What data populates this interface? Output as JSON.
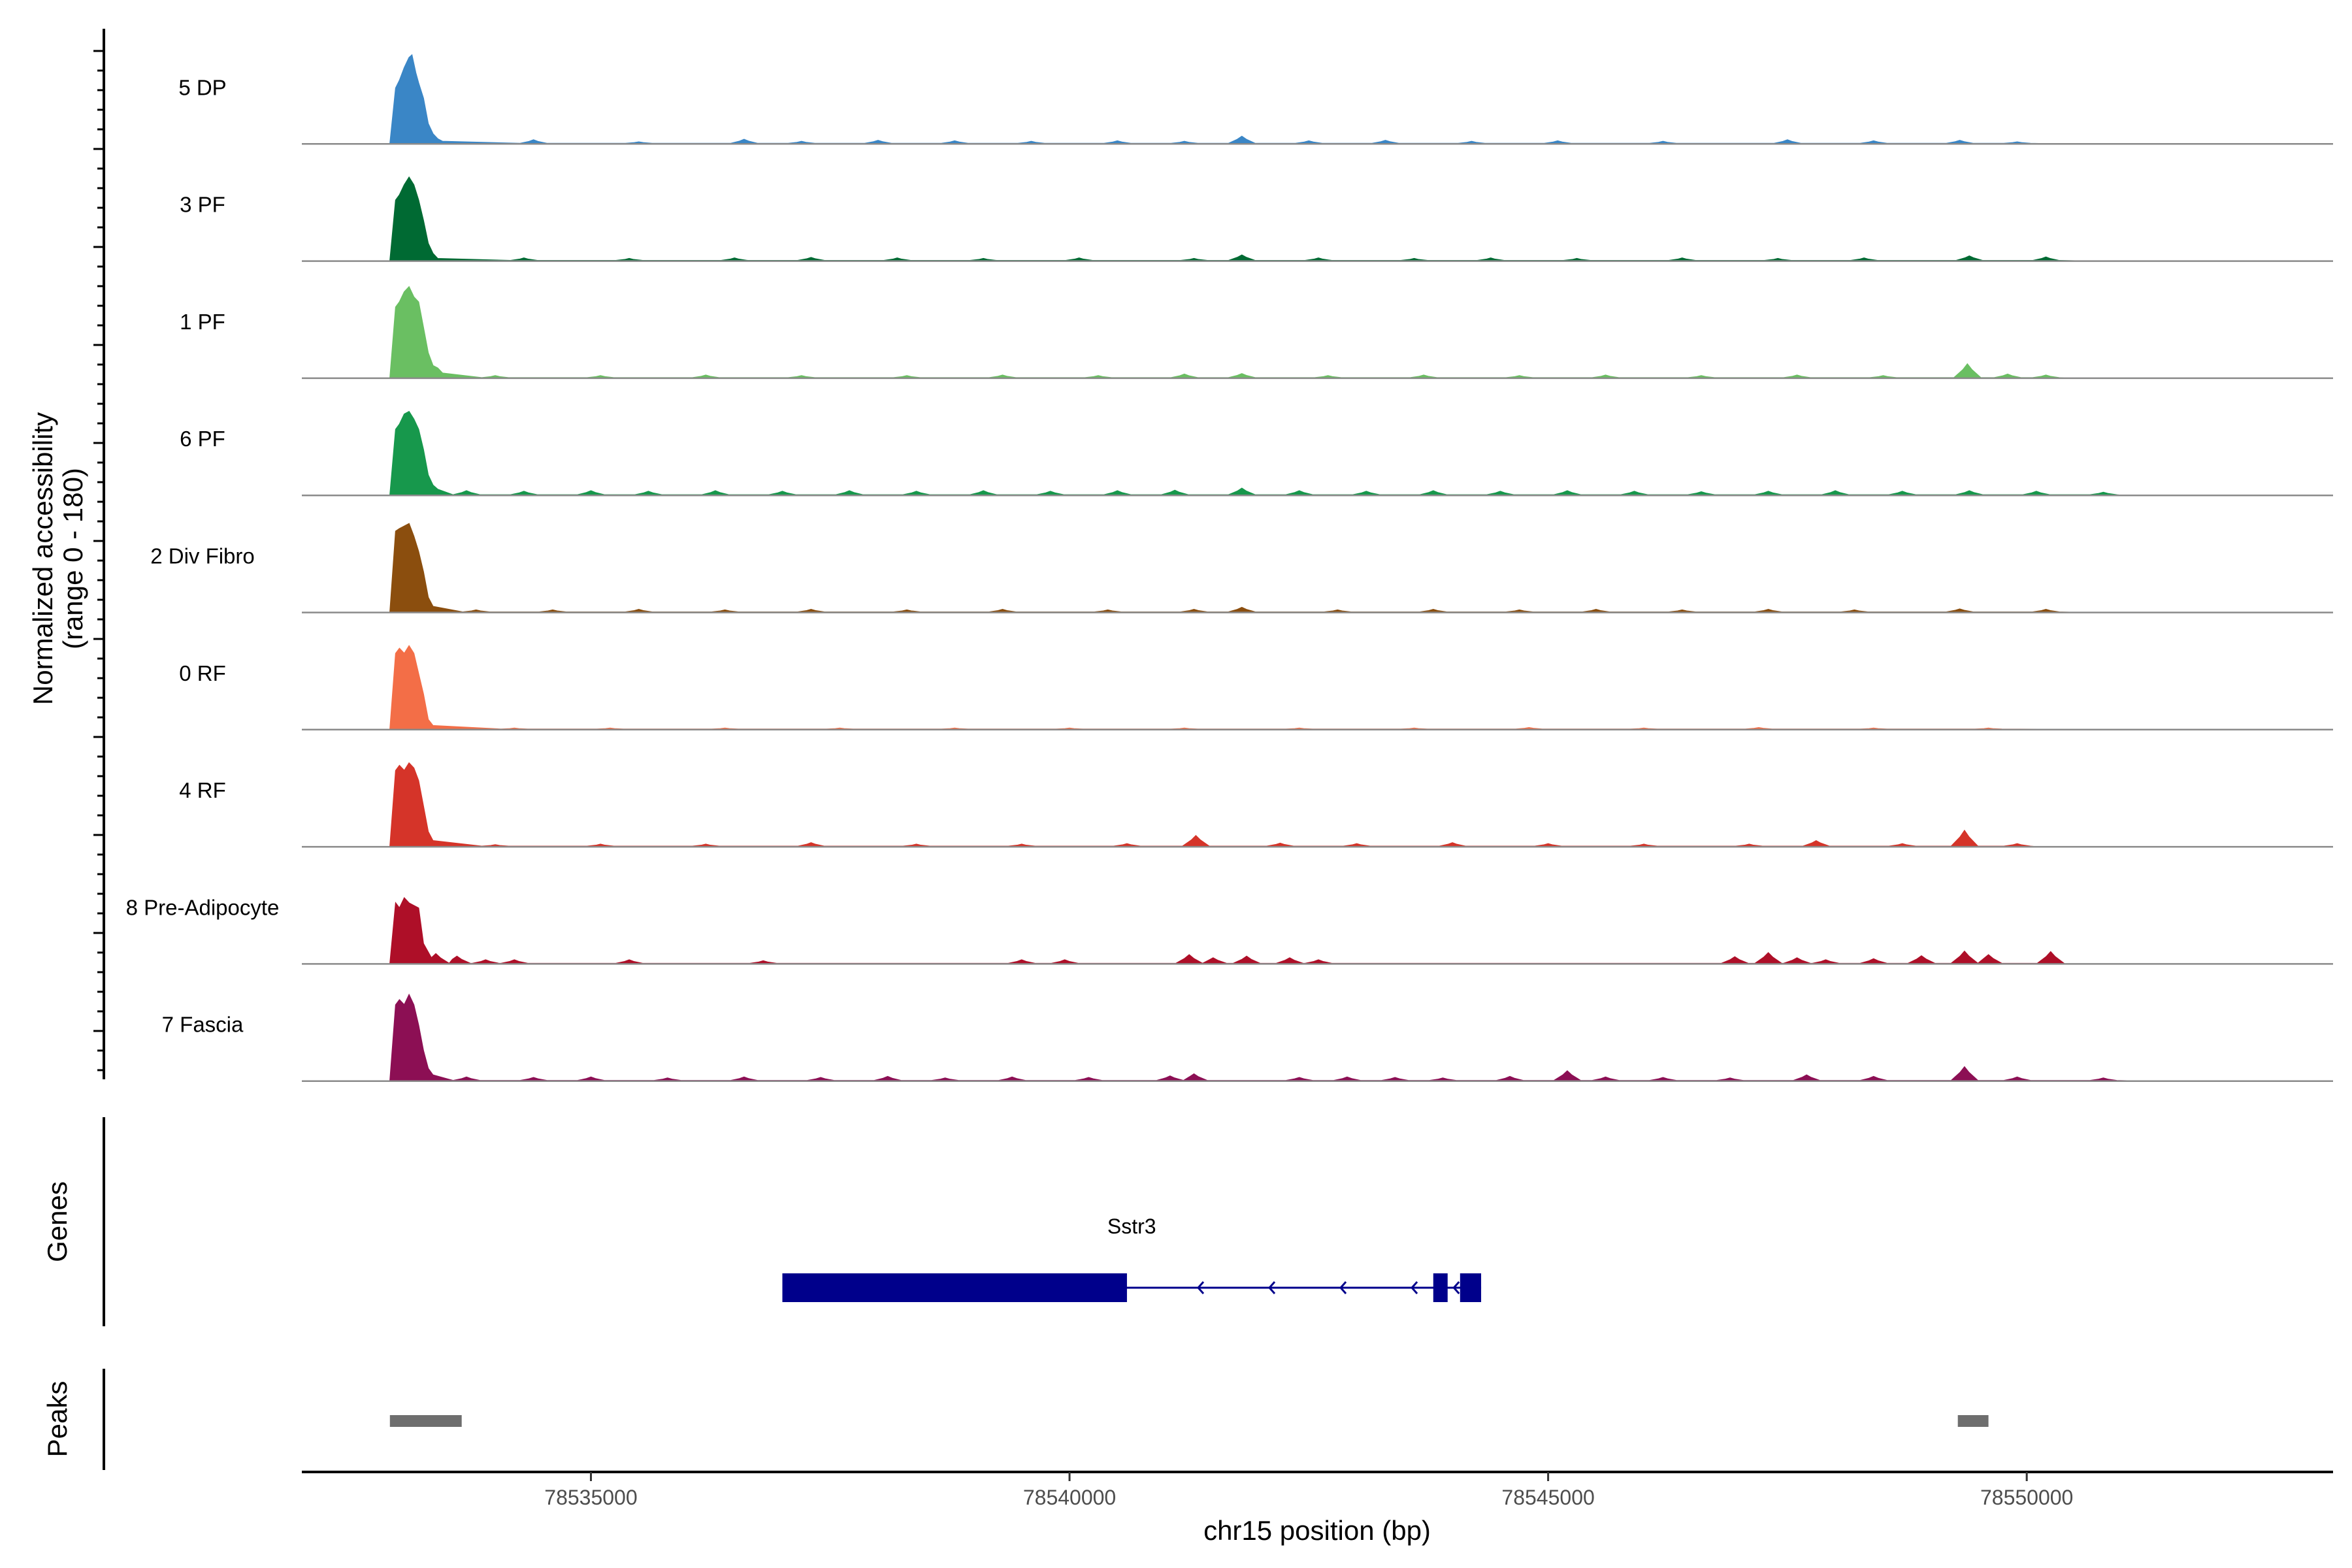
{
  "chart_data": {
    "type": "area",
    "title": "",
    "xlabel": "chr15 position (bp)",
    "ylabel": "Normalized accessibility",
    "ylabel_sub": "(range 0 - 180)",
    "xlim": [
      78531980,
      78553200
    ],
    "ylim": [
      0,
      180
    ],
    "x_ticks": [
      {
        "value": 78535000,
        "label": "78535000"
      },
      {
        "value": 78540000,
        "label": "78540000"
      },
      {
        "value": 78545000,
        "label": "78545000"
      },
      {
        "value": 78550000,
        "label": "78550000"
      }
    ],
    "series": [
      {
        "name": "5 DP",
        "color": "#3a86c6",
        "profile": [
          [
            78532900,
            0
          ],
          [
            78532960,
            110
          ],
          [
            78533000,
            125
          ],
          [
            78533050,
            150
          ],
          [
            78533100,
            170
          ],
          [
            78533130,
            175
          ],
          [
            78533170,
            140
          ],
          [
            78533200,
            120
          ],
          [
            78533250,
            90
          ],
          [
            78533300,
            40
          ],
          [
            78533350,
            20
          ],
          [
            78533400,
            10
          ],
          [
            78533450,
            5
          ]
        ],
        "bumps": [
          [
            78534400,
            8
          ],
          [
            78535500,
            4
          ],
          [
            78536600,
            9
          ],
          [
            78537200,
            5
          ],
          [
            78538000,
            7
          ],
          [
            78538800,
            6
          ],
          [
            78539600,
            5
          ],
          [
            78540500,
            6
          ],
          [
            78541200,
            5
          ],
          [
            78541800,
            15
          ],
          [
            78542500,
            6
          ],
          [
            78543300,
            7
          ],
          [
            78544200,
            5
          ],
          [
            78545100,
            6
          ],
          [
            78546200,
            5
          ],
          [
            78547500,
            8
          ],
          [
            78548400,
            6
          ],
          [
            78549300,
            7
          ],
          [
            78549900,
            4
          ]
        ],
        "end": 78550300
      },
      {
        "name": "3 PF",
        "color": "#006a33",
        "profile": [
          [
            78532900,
            0
          ],
          [
            78532960,
            120
          ],
          [
            78533000,
            130
          ],
          [
            78533050,
            150
          ],
          [
            78533100,
            165
          ],
          [
            78533150,
            150
          ],
          [
            78533200,
            120
          ],
          [
            78533250,
            80
          ],
          [
            78533300,
            35
          ],
          [
            78533350,
            15
          ],
          [
            78533400,
            5
          ]
        ],
        "bumps": [
          [
            78534300,
            6
          ],
          [
            78535400,
            5
          ],
          [
            78536500,
            6
          ],
          [
            78537300,
            7
          ],
          [
            78538200,
            6
          ],
          [
            78539100,
            5
          ],
          [
            78540100,
            6
          ],
          [
            78541300,
            5
          ],
          [
            78541800,
            12
          ],
          [
            78542600,
            6
          ],
          [
            78543600,
            5
          ],
          [
            78544400,
            6
          ],
          [
            78545300,
            5
          ],
          [
            78546400,
            6
          ],
          [
            78547400,
            5
          ],
          [
            78548300,
            6
          ],
          [
            78549400,
            10
          ],
          [
            78550200,
            8
          ]
        ],
        "end": 78550600
      },
      {
        "name": "1 PF",
        "color": "#6abf62",
        "profile": [
          [
            78532900,
            0
          ],
          [
            78532960,
            140
          ],
          [
            78533000,
            150
          ],
          [
            78533050,
            170
          ],
          [
            78533100,
            180
          ],
          [
            78533150,
            160
          ],
          [
            78533200,
            150
          ],
          [
            78533250,
            100
          ],
          [
            78533300,
            50
          ],
          [
            78533350,
            25
          ],
          [
            78533400,
            20
          ],
          [
            78533450,
            10
          ]
        ],
        "bumps": [
          [
            78534000,
            5
          ],
          [
            78535100,
            5
          ],
          [
            78536200,
            6
          ],
          [
            78537200,
            5
          ],
          [
            78538300,
            5
          ],
          [
            78539300,
            6
          ],
          [
            78540300,
            5
          ],
          [
            78541200,
            8
          ],
          [
            78541800,
            9
          ],
          [
            78542700,
            5
          ],
          [
            78543700,
            6
          ],
          [
            78544700,
            5
          ],
          [
            78545600,
            6
          ],
          [
            78546600,
            5
          ],
          [
            78547600,
            6
          ],
          [
            78548500,
            5
          ],
          [
            78549380,
            28
          ],
          [
            78549800,
            8
          ],
          [
            78550200,
            6
          ]
        ],
        "end": 78550400
      },
      {
        "name": "6 PF",
        "color": "#17984c",
        "profile": [
          [
            78532900,
            0
          ],
          [
            78532960,
            130
          ],
          [
            78533000,
            140
          ],
          [
            78533050,
            160
          ],
          [
            78533100,
            165
          ],
          [
            78533150,
            150
          ],
          [
            78533200,
            130
          ],
          [
            78533250,
            90
          ],
          [
            78533300,
            40
          ],
          [
            78533350,
            20
          ],
          [
            78533400,
            12
          ]
        ],
        "bumps": [
          [
            78533700,
            9
          ],
          [
            78534300,
            8
          ],
          [
            78535000,
            9
          ],
          [
            78535600,
            8
          ],
          [
            78536300,
            9
          ],
          [
            78537000,
            8
          ],
          [
            78537700,
            9
          ],
          [
            78538400,
            8
          ],
          [
            78539100,
            9
          ],
          [
            78539800,
            8
          ],
          [
            78540500,
            9
          ],
          [
            78541100,
            10
          ],
          [
            78541800,
            14
          ],
          [
            78542400,
            9
          ],
          [
            78543100,
            8
          ],
          [
            78543800,
            9
          ],
          [
            78544500,
            8
          ],
          [
            78545200,
            9
          ],
          [
            78545900,
            8
          ],
          [
            78546600,
            7
          ],
          [
            78547300,
            8
          ],
          [
            78548000,
            9
          ],
          [
            78548700,
            8
          ],
          [
            78549400,
            9
          ],
          [
            78550100,
            8
          ],
          [
            78550800,
            6
          ]
        ],
        "end": 78551000
      },
      {
        "name": "2 Div Fibro",
        "color": "#8b4e0e",
        "profile": [
          [
            78532900,
            0
          ],
          [
            78532960,
            160
          ],
          [
            78533000,
            165
          ],
          [
            78533050,
            170
          ],
          [
            78533100,
            175
          ],
          [
            78533150,
            150
          ],
          [
            78533200,
            120
          ],
          [
            78533250,
            80
          ],
          [
            78533300,
            30
          ],
          [
            78533350,
            12
          ]
        ],
        "bumps": [
          [
            78533800,
            5
          ],
          [
            78534600,
            5
          ],
          [
            78535500,
            6
          ],
          [
            78536400,
            5
          ],
          [
            78537300,
            6
          ],
          [
            78538300,
            5
          ],
          [
            78539300,
            6
          ],
          [
            78540400,
            5
          ],
          [
            78541300,
            6
          ],
          [
            78541800,
            10
          ],
          [
            78542800,
            5
          ],
          [
            78543800,
            6
          ],
          [
            78544700,
            5
          ],
          [
            78545500,
            6
          ],
          [
            78546400,
            5
          ],
          [
            78547300,
            6
          ],
          [
            78548200,
            5
          ],
          [
            78549300,
            7
          ],
          [
            78550200,
            6
          ]
        ],
        "end": 78550500
      },
      {
        "name": "0 RF",
        "color": "#f36e47",
        "profile": [
          [
            78532900,
            0
          ],
          [
            78532960,
            150
          ],
          [
            78533000,
            160
          ],
          [
            78533050,
            150
          ],
          [
            78533100,
            165
          ],
          [
            78533150,
            150
          ],
          [
            78533200,
            110
          ],
          [
            78533250,
            70
          ],
          [
            78533300,
            20
          ],
          [
            78533350,
            8
          ]
        ],
        "bumps": [
          [
            78534200,
            3
          ],
          [
            78535200,
            3
          ],
          [
            78536400,
            3
          ],
          [
            78537600,
            3
          ],
          [
            78538800,
            3
          ],
          [
            78540000,
            3
          ],
          [
            78541200,
            3
          ],
          [
            78542400,
            3
          ],
          [
            78543600,
            3
          ],
          [
            78544800,
            4
          ],
          [
            78546000,
            3
          ],
          [
            78547200,
            4
          ],
          [
            78548400,
            3
          ],
          [
            78549600,
            3
          ]
        ],
        "end": 78551000
      },
      {
        "name": "4 RF",
        "color": "#d53429",
        "profile": [
          [
            78532900,
            0
          ],
          [
            78532960,
            150
          ],
          [
            78533000,
            160
          ],
          [
            78533050,
            150
          ],
          [
            78533100,
            165
          ],
          [
            78533150,
            155
          ],
          [
            78533200,
            130
          ],
          [
            78533250,
            80
          ],
          [
            78533300,
            30
          ],
          [
            78533350,
            12
          ]
        ],
        "bumps": [
          [
            78534000,
            4
          ],
          [
            78535100,
            5
          ],
          [
            78536200,
            5
          ],
          [
            78537300,
            8
          ],
          [
            78538400,
            5
          ],
          [
            78539500,
            5
          ],
          [
            78540600,
            6
          ],
          [
            78541320,
            22
          ],
          [
            78542200,
            7
          ],
          [
            78543000,
            6
          ],
          [
            78544000,
            8
          ],
          [
            78545000,
            6
          ],
          [
            78546000,
            5
          ],
          [
            78547100,
            5
          ],
          [
            78547800,
            12
          ],
          [
            78548700,
            6
          ],
          [
            78549350,
            32
          ],
          [
            78549900,
            6
          ]
        ],
        "end": 78550100
      },
      {
        "name": "8 Pre-Adipocyte",
        "color": "#ae0f28",
        "profile": [
          [
            78532900,
            0
          ],
          [
            78532960,
            120
          ],
          [
            78533000,
            110
          ],
          [
            78533050,
            130
          ],
          [
            78533100,
            120
          ],
          [
            78533150,
            115
          ],
          [
            78533200,
            110
          ],
          [
            78533250,
            40
          ]
        ],
        "bumps": [
          [
            78533380,
            20
          ],
          [
            78533600,
            15
          ],
          [
            78533900,
            8
          ],
          [
            78534200,
            8
          ],
          [
            78535400,
            8
          ],
          [
            78536800,
            6
          ],
          [
            78539500,
            8
          ],
          [
            78539950,
            8
          ],
          [
            78541250,
            18
          ],
          [
            78541500,
            12
          ],
          [
            78541850,
            15
          ],
          [
            78542300,
            12
          ],
          [
            78542600,
            8
          ],
          [
            78546950,
            14
          ],
          [
            78547300,
            22
          ],
          [
            78547600,
            12
          ],
          [
            78547900,
            8
          ],
          [
            78548400,
            10
          ],
          [
            78548900,
            16
          ],
          [
            78549350,
            25
          ],
          [
            78549600,
            18
          ],
          [
            78550250,
            24
          ]
        ],
        "end": 78550350
      },
      {
        "name": "7 Fascia",
        "color": "#8c0f54",
        "profile": [
          [
            78532900,
            0
          ],
          [
            78532960,
            150
          ],
          [
            78533000,
            160
          ],
          [
            78533050,
            150
          ],
          [
            78533100,
            170
          ],
          [
            78533150,
            150
          ],
          [
            78533200,
            110
          ],
          [
            78533250,
            60
          ],
          [
            78533300,
            25
          ],
          [
            78533350,
            12
          ]
        ],
        "bumps": [
          [
            78533700,
            8
          ],
          [
            78534400,
            7
          ],
          [
            78535000,
            8
          ],
          [
            78535800,
            6
          ],
          [
            78536600,
            8
          ],
          [
            78537400,
            7
          ],
          [
            78538100,
            9
          ],
          [
            78538700,
            6
          ],
          [
            78539400,
            8
          ],
          [
            78540200,
            7
          ],
          [
            78541050,
            10
          ],
          [
            78541300,
            14
          ],
          [
            78542400,
            7
          ],
          [
            78542900,
            8
          ],
          [
            78543400,
            7
          ],
          [
            78543900,
            6
          ],
          [
            78544600,
            9
          ],
          [
            78545200,
            20
          ],
          [
            78545600,
            8
          ],
          [
            78546200,
            7
          ],
          [
            78546900,
            6
          ],
          [
            78547700,
            12
          ],
          [
            78548400,
            9
          ],
          [
            78549350,
            28
          ],
          [
            78549900,
            8
          ],
          [
            78550800,
            6
          ]
        ],
        "end": 78551200
      }
    ],
    "genes": [
      {
        "name": "Sstr3",
        "strand": "-",
        "start": 78537000,
        "end": 78544300,
        "exons": [
          [
            78537000,
            78540600
          ],
          [
            78543800,
            78543950
          ],
          [
            78544080,
            78544300
          ]
        ]
      }
    ],
    "peaks": [
      [
        78532900,
        78533650
      ],
      [
        78549280,
        78549600
      ]
    ],
    "panels": {
      "genes": "Genes",
      "peaks": "Peaks"
    }
  }
}
